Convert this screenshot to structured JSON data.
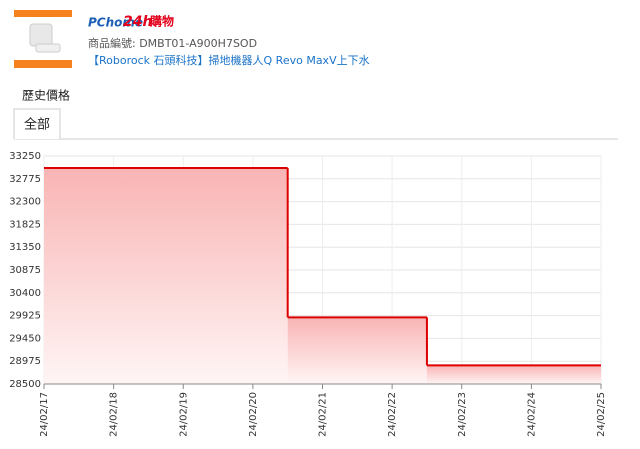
{
  "header": {
    "logo_brand": "PChome",
    "logo_24h": "24h",
    "logo_shop": "購物",
    "product_id": "商品編號: DMBT01-A900H7SOD",
    "product_link": "【Roborock 石頭科技】掃地機器人Q Revo MaxV上下水"
  },
  "section_title": "歷史價格",
  "tabs": [
    "全部"
  ],
  "chart_data": {
    "type": "step",
    "step": "post",
    "color": "#dd0000",
    "fill_area": true,
    "grid": true,
    "x": [
      0,
      3.5,
      5.5
    ],
    "values": [
      32999,
      29888,
      28888
    ],
    "xlim": [
      0,
      8
    ],
    "xticks": [
      {
        "value": 0,
        "label": "24/02/17"
      },
      {
        "value": 1,
        "label": "24/02/18"
      },
      {
        "value": 2,
        "label": "24/02/19"
      },
      {
        "value": 3,
        "label": "24/02/20"
      },
      {
        "value": 4,
        "label": "24/02/21"
      },
      {
        "value": 5,
        "label": "24/02/22"
      },
      {
        "value": 6,
        "label": "24/02/23"
      },
      {
        "value": 7,
        "label": "24/02/24"
      },
      {
        "value": 8,
        "label": "24/02/25"
      }
    ],
    "ylim": [
      28500,
      33250
    ],
    "yticks": [
      28500,
      28975,
      29450,
      29925,
      30400,
      30875,
      31350,
      31825,
      32300,
      32775,
      33250
    ]
  }
}
